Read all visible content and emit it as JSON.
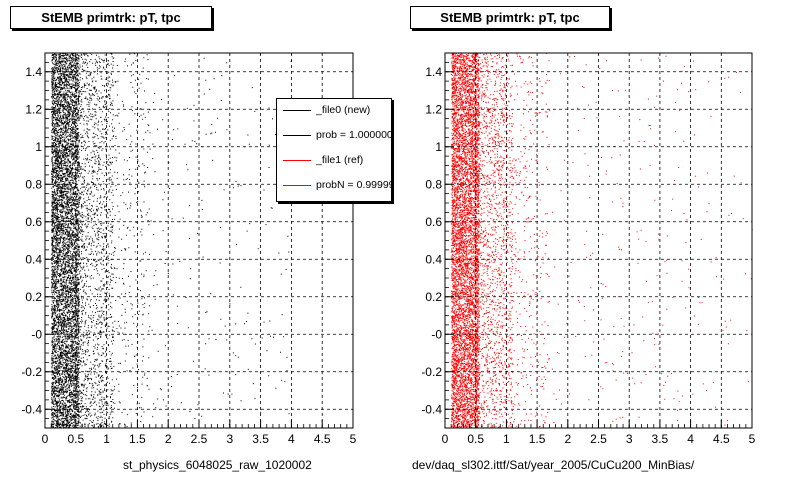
{
  "panels": [
    {
      "title": "StEMB primtrk: pT, tpc",
      "run_label": "st_physics_6048025_raw_1020002",
      "color": "#000000"
    },
    {
      "title": "StEMB primtrk: pT, tpc",
      "run_label": "dev/daq_sl302.ittf/Sat/year_2005/CuCu200_MinBias/",
      "color": "#ff0000"
    }
  ],
  "legend": {
    "entries": [
      {
        "label": "_file0 (new)",
        "color": "#000000"
      },
      {
        "label": "prob = 1.000000",
        "color": "#000000"
      },
      {
        "label": "_file1 (ref)",
        "color": "#ff0000"
      },
      {
        "label": "probN = 0.99999",
        "color": "#ff0000"
      }
    ]
  },
  "chart_data": [
    {
      "type": "scatter",
      "title": "StEMB primtrk: pT, tpc",
      "xlabel": "",
      "ylabel": "",
      "xlim": [
        0,
        5
      ],
      "ylim": [
        -0.5,
        1.5
      ],
      "grid": true,
      "x_ticks": [
        "0",
        "0.5",
        "1",
        "1.5",
        "2",
        "2.5",
        "3",
        "3.5",
        "4",
        "4.5",
        "5"
      ],
      "y_ticks": [
        "-0.4",
        "-0.2",
        "-0",
        "0.2",
        "0.4",
        "0.6",
        "0.8",
        "1",
        "1.2",
        "1.4"
      ],
      "series": [
        {
          "color": "#000000",
          "x_distribution": "dense near pT 0.1-0.5, falling off toward 1.5, sparse to 4",
          "y_distribution": "uniform from -0.5 to 1.5"
        }
      ]
    },
    {
      "type": "scatter",
      "title": "StEMB primtrk: pT, tpc",
      "xlabel": "",
      "ylabel": "",
      "xlim": [
        0,
        5
      ],
      "ylim": [
        -0.5,
        1.5
      ],
      "grid": true,
      "x_ticks": [
        "0",
        "0.5",
        "1",
        "1.5",
        "2",
        "2.5",
        "3",
        "3.5",
        "4",
        "4.5",
        "5"
      ],
      "y_ticks": [
        "-0.4",
        "-0.2",
        "-0",
        "0.2",
        "0.4",
        "0.6",
        "0.8",
        "1",
        "1.2",
        "1.4"
      ],
      "series": [
        {
          "color": "#ff0000",
          "x_distribution": "dense near pT 0.1-0.5, falling off toward 1.5, sparse to 5",
          "y_distribution": "uniform from -0.5 to 1.5"
        }
      ]
    }
  ]
}
